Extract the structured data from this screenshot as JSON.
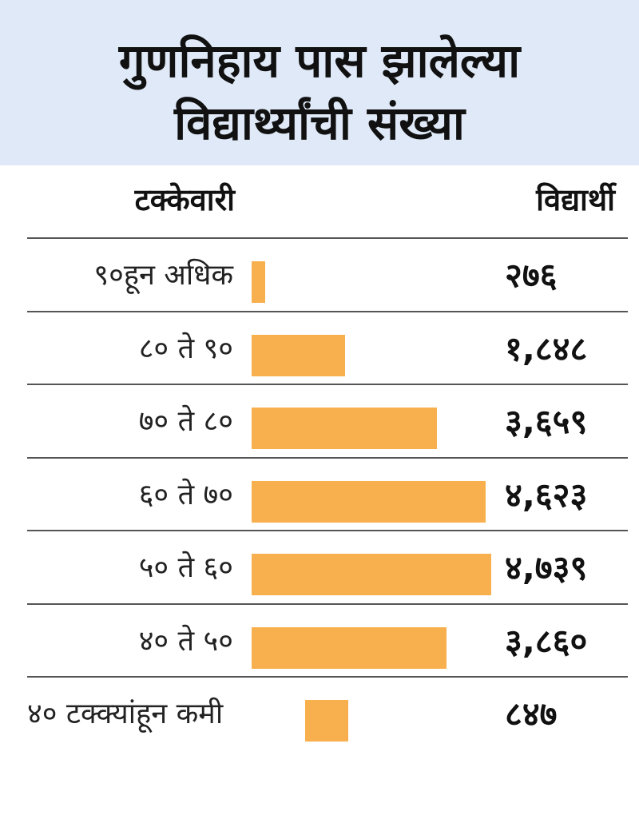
{
  "colors": {
    "title_background": "#dfe9f7",
    "bar": "#f8b04f",
    "rule": "#555555"
  },
  "chart_data": {
    "type": "bar",
    "orientation": "horizontal",
    "title_lines": [
      "गुणनिहाय पास झालेल्या",
      "विद्यार्थ्यांची संख्या"
    ],
    "xlabel": "टक्केवारी",
    "ylabel": "विद्यार्थी",
    "categories": [
      "९०हून अधिक",
      "८० ते ९०",
      "७० ते ८०",
      "६० ते ७०",
      "५० ते ६०",
      "४० ते ५०",
      "४० टक्क्यांहून कमी"
    ],
    "values": [
      276,
      1848,
      3659,
      4623,
      4739,
      3860,
      847
    ],
    "value_labels": [
      "२७६",
      "१,८४८",
      "३,६५९",
      "४,६२३",
      "४,७३९",
      "३,८६०",
      "८४७"
    ],
    "grid": false,
    "legend": "none"
  }
}
